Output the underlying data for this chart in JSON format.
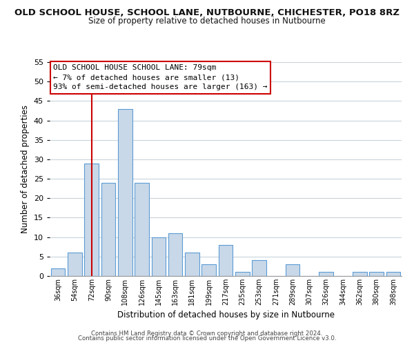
{
  "title": "OLD SCHOOL HOUSE, SCHOOL LANE, NUTBOURNE, CHICHESTER, PO18 8RZ",
  "subtitle": "Size of property relative to detached houses in Nutbourne",
  "xlabel": "Distribution of detached houses by size in Nutbourne",
  "ylabel": "Number of detached properties",
  "bar_labels": [
    "36sqm",
    "54sqm",
    "72sqm",
    "90sqm",
    "108sqm",
    "126sqm",
    "145sqm",
    "163sqm",
    "181sqm",
    "199sqm",
    "217sqm",
    "235sqm",
    "253sqm",
    "271sqm",
    "289sqm",
    "307sqm",
    "326sqm",
    "344sqm",
    "362sqm",
    "380sqm",
    "398sqm"
  ],
  "bar_values": [
    2,
    6,
    29,
    24,
    43,
    24,
    10,
    11,
    6,
    3,
    8,
    1,
    4,
    0,
    3,
    0,
    1,
    0,
    1,
    1,
    1
  ],
  "bar_color": "#c8d8e8",
  "bar_edge_color": "#5b9bd5",
  "vline_x": 2,
  "vline_color": "#cc0000",
  "ylim": [
    0,
    55
  ],
  "yticks": [
    0,
    5,
    10,
    15,
    20,
    25,
    30,
    35,
    40,
    45,
    50,
    55
  ],
  "annotation_title": "OLD SCHOOL HOUSE SCHOOL LANE: 79sqm",
  "annotation_line1": "← 7% of detached houses are smaller (13)",
  "annotation_line2": "93% of semi-detached houses are larger (163) →",
  "annotation_box_color": "#ffffff",
  "annotation_box_edge": "#cc0000",
  "footer_line1": "Contains HM Land Registry data © Crown copyright and database right 2024.",
  "footer_line2": "Contains public sector information licensed under the Open Government Licence v3.0.",
  "background_color": "#ffffff",
  "grid_color": "#c8d4dc"
}
